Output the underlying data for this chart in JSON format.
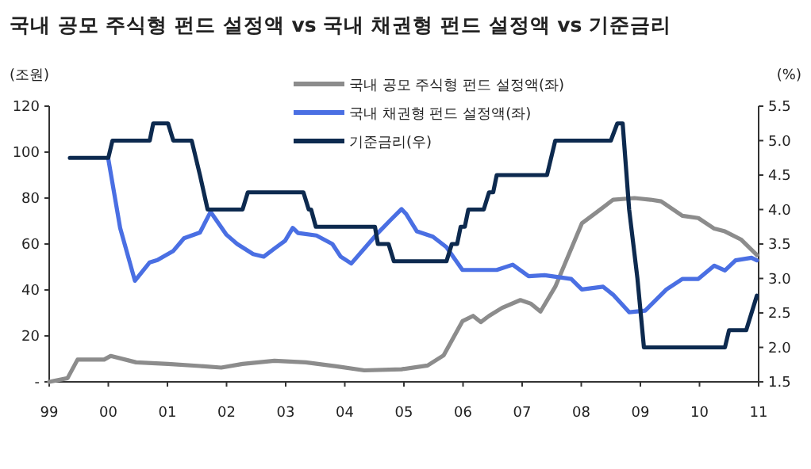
{
  "chart_data": {
    "type": "line",
    "title": "국내 공모 주식형 펀드 설정액 vs 국내 채권형 펀드 설정액 vs 기준금리",
    "ylabel": "(조원)",
    "y2label": "(%)",
    "xlim": [
      1999,
      2011
    ],
    "xticks": [
      {
        "value": 1999,
        "label": "99"
      },
      {
        "value": 2000,
        "label": "00"
      },
      {
        "value": 2001,
        "label": "01"
      },
      {
        "value": 2002,
        "label": "02"
      },
      {
        "value": 2003,
        "label": "03"
      },
      {
        "value": 2004,
        "label": "04"
      },
      {
        "value": 2005,
        "label": "05"
      },
      {
        "value": 2006,
        "label": "06"
      },
      {
        "value": 2007,
        "label": "07"
      },
      {
        "value": 2008,
        "label": "08"
      },
      {
        "value": 2009,
        "label": "09"
      },
      {
        "value": 2010,
        "label": "10"
      },
      {
        "value": 2011,
        "label": "11"
      }
    ],
    "ylim": [
      0,
      120
    ],
    "yticks": [
      {
        "value": 0,
        "label": "-"
      },
      20,
      40,
      60,
      80,
      100,
      120
    ],
    "y2lim": [
      1.5,
      5.5
    ],
    "y2ticks": [
      1.5,
      {
        "value": 2,
        "label": "2.0"
      },
      2.5,
      {
        "value": 3,
        "label": "3.0"
      },
      3.5,
      {
        "value": 4,
        "label": "4.0"
      },
      4.5,
      {
        "value": 5,
        "label": "5.0"
      },
      5.5
    ],
    "grid": false,
    "legend": "top",
    "marker": "none",
    "line_style": "solid",
    "series": [
      {
        "name": "국내 공모 주식형 펀드 설정액(좌)",
        "color": "#8c8c8c",
        "x": [
          1999.0,
          1999.31,
          1999.48,
          1999.93,
          2000.04,
          2000.47,
          2001.01,
          2001.55,
          2001.91,
          2002.27,
          2002.81,
          2003.34,
          2003.88,
          2004.33,
          2004.96,
          2005.4,
          2005.67,
          2005.99,
          2006.17,
          2006.3,
          2006.44,
          2006.66,
          2006.97,
          2007.15,
          2007.31,
          2007.56,
          2008.01,
          2008.27,
          2008.54,
          2008.9,
          2009.17,
          2009.35,
          2009.71,
          2009.98,
          2010.25,
          2010.43,
          2010.7,
          2010.97
        ],
        "values": [
          0,
          1.6,
          9.7,
          9.7,
          11.3,
          8.5,
          7.8,
          6.9,
          6.2,
          7.8,
          9.2,
          8.5,
          6.7,
          5.0,
          5.5,
          7.1,
          11.5,
          26.4,
          28.7,
          26,
          28.7,
          32.2,
          35.6,
          34,
          30.6,
          41.4,
          69,
          74,
          79.3,
          80,
          79.3,
          78.6,
          72.3,
          71.3,
          66.7,
          65.5,
          62,
          55.2
        ]
      },
      {
        "name": "국내 채권형 펀드 설정액(좌)",
        "color": "#4a6fe3",
        "x": [
          2000.0,
          2000.2,
          2000.45,
          2000.7,
          2000.83,
          2001.1,
          2001.28,
          2001.55,
          2001.73,
          2002.0,
          2002.18,
          2002.45,
          2002.63,
          2002.81,
          2002.99,
          2003.12,
          2003.21,
          2003.52,
          2003.79,
          2003.93,
          2004.11,
          2004.33,
          2004.56,
          2004.78,
          2004.96,
          2005.04,
          2005.22,
          2005.49,
          2005.72,
          2005.99,
          2006.57,
          2006.84,
          2007.11,
          2007.38,
          2007.83,
          2008.01,
          2008.37,
          2008.54,
          2008.81,
          2009.08,
          2009.44,
          2009.71,
          2009.98,
          2010.25,
          2010.43,
          2010.61,
          2010.88,
          2010.97
        ],
        "values": [
          97,
          67,
          44,
          52,
          53,
          57,
          62.5,
          65,
          74,
          64,
          60,
          55.6,
          54.5,
          58,
          61.4,
          67,
          64.8,
          63.7,
          60,
          54.5,
          51.5,
          58,
          64.8,
          70.6,
          75.2,
          73,
          65.5,
          63.2,
          58.6,
          48.7,
          48.7,
          51,
          46,
          46.4,
          44.8,
          40.2,
          41.4,
          37.9,
          30.3,
          31,
          40.2,
          44.8,
          44.8,
          50.6,
          48.5,
          52.9,
          54,
          52.9
        ]
      },
      {
        "name": "기준금리(우)",
        "color": "#0d2a4f",
        "axis": "y2",
        "x": [
          1999.35,
          2000.0,
          2000.07,
          2000.7,
          2000.76,
          2001.01,
          2001.1,
          2001.41,
          2001.55,
          2001.68,
          2002.27,
          2002.36,
          2003.3,
          2003.39,
          2003.43,
          2003.51,
          2004.51,
          2004.56,
          2004.74,
          2004.83,
          2005.72,
          2005.81,
          2005.9,
          2005.96,
          2006.03,
          2006.09,
          2006.35,
          2006.44,
          2006.51,
          2006.57,
          2007.42,
          2007.56,
          2008.5,
          2008.61,
          2008.7,
          2008.81,
          2008.95,
          2009.06,
          2010.43,
          2010.5,
          2010.79,
          2010.97
        ],
        "values": [
          4.75,
          4.75,
          5.0,
          5.0,
          5.25,
          5.25,
          5.0,
          5.0,
          4.5,
          4.0,
          4.0,
          4.25,
          4.25,
          4.0,
          4.0,
          3.75,
          3.75,
          3.5,
          3.5,
          3.25,
          3.25,
          3.5,
          3.5,
          3.75,
          3.75,
          4.0,
          4.0,
          4.25,
          4.25,
          4.5,
          4.5,
          5.0,
          5.0,
          5.25,
          5.25,
          4.0,
          3.0,
          2.0,
          2.0,
          2.25,
          2.25,
          2.75
        ]
      }
    ]
  }
}
